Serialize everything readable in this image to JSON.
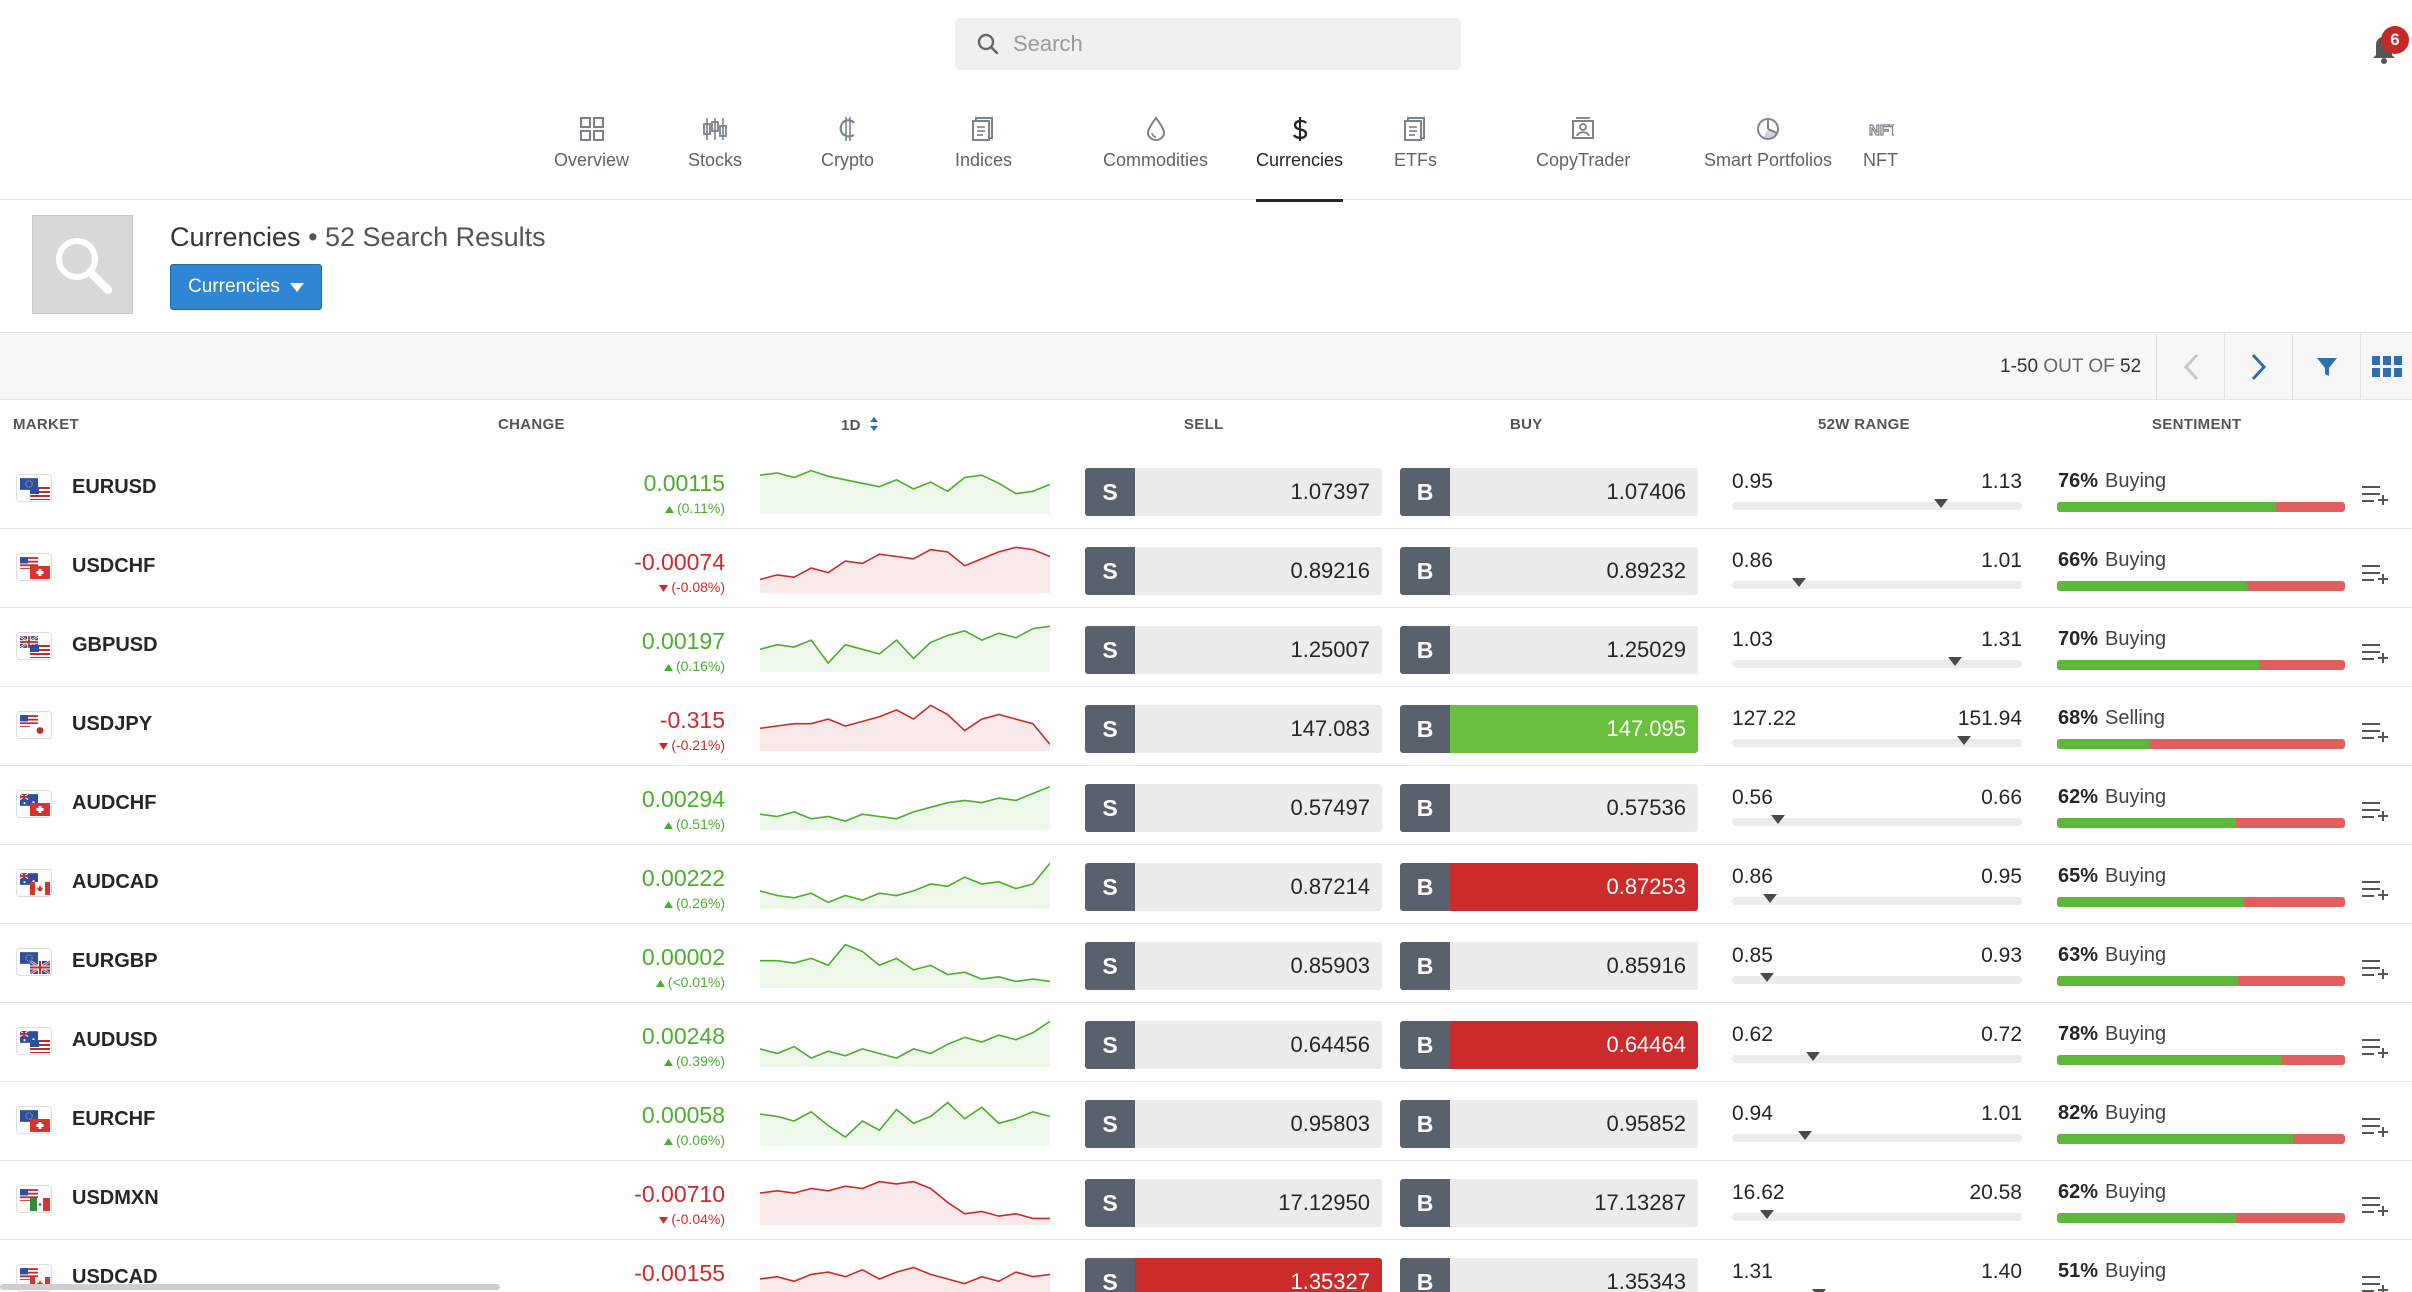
{
  "search": {
    "placeholder": "Search"
  },
  "notifications": {
    "count": "6"
  },
  "nav": {
    "tabs": [
      {
        "label": "Overview",
        "icon": "grid-icon",
        "active": false
      },
      {
        "label": "Stocks",
        "icon": "candlestick-icon",
        "active": false
      },
      {
        "label": "Crypto",
        "icon": "crypto-icon",
        "active": false
      },
      {
        "label": "Indices",
        "icon": "document-icon",
        "active": false
      },
      {
        "label": "Commodities",
        "icon": "drop-icon",
        "active": false
      },
      {
        "label": "Currencies",
        "icon": "dollar-icon",
        "active": true
      },
      {
        "label": "ETFs",
        "icon": "document-icon",
        "active": false
      },
      {
        "label": "CopyTrader",
        "icon": "person-card-icon",
        "active": false
      },
      {
        "label": "Smart Portfolios",
        "icon": "pie-icon",
        "active": false
      },
      {
        "label": "NFT",
        "icon": "nft-icon",
        "active": false
      }
    ]
  },
  "header": {
    "title": "Currencies",
    "result_count": "• 52 Search Results",
    "filter_button": "Currencies"
  },
  "pager": {
    "range": "1-50",
    "out_of": "OUT OF",
    "total": "52"
  },
  "columns": {
    "market": "MARKET",
    "change": "CHANGE",
    "oneday": "1D",
    "sell": "SELL",
    "buy": "BUY",
    "range52": "52W RANGE",
    "sentiment": "SENTIMENT"
  },
  "colors": {
    "up": "#4bae2d",
    "down": "#cc2b2b",
    "accent": "#2f86d4",
    "buy_bar": "#5cb83a",
    "sell_bar": "#e35e5e"
  },
  "rows": [
    {
      "symbol": "EURUSD",
      "change": "0.00115",
      "change_pct": "(0.11%)",
      "dir": "up",
      "sell": "1.07397",
      "buy": "1.07406",
      "sell_hl": "",
      "buy_hl": "",
      "low": "0.95",
      "high": "1.13",
      "range_pos": 0.72,
      "sent_pct": "76%",
      "sent_label": "Buying",
      "sent_value": 76,
      "flags": [
        "eu",
        "us"
      ],
      "spark": [
        8,
        6,
        10,
        4,
        9,
        12,
        15,
        18,
        12,
        20,
        14,
        22,
        10,
        8,
        15,
        24,
        22,
        16
      ]
    },
    {
      "symbol": "USDCHF",
      "change": "-0.00074",
      "change_pct": "(-0.08%)",
      "dir": "down",
      "sell": "0.89216",
      "buy": "0.89232",
      "sell_hl": "",
      "buy_hl": "",
      "low": "0.86",
      "high": "1.01",
      "range_pos": 0.23,
      "sent_pct": "66%",
      "sent_label": "Buying",
      "sent_value": 66,
      "flags": [
        "us",
        "ch"
      ],
      "spark": [
        30,
        26,
        28,
        20,
        24,
        14,
        16,
        8,
        10,
        12,
        4,
        6,
        18,
        12,
        6,
        2,
        4,
        10
      ]
    },
    {
      "symbol": "GBPUSD",
      "change": "0.00197",
      "change_pct": "(0.16%)",
      "dir": "up",
      "sell": "1.25007",
      "buy": "1.25029",
      "sell_hl": "",
      "buy_hl": "",
      "low": "1.03",
      "high": "1.31",
      "range_pos": 0.77,
      "sent_pct": "70%",
      "sent_label": "Buying",
      "sent_value": 70,
      "flags": [
        "gb",
        "us"
      ],
      "spark": [
        22,
        18,
        20,
        14,
        34,
        18,
        22,
        26,
        14,
        30,
        16,
        10,
        6,
        14,
        8,
        12,
        4,
        2
      ]
    },
    {
      "symbol": "USDJPY",
      "change": "-0.315",
      "change_pct": "(-0.21%)",
      "dir": "down",
      "sell": "147.083",
      "buy": "147.095",
      "sell_hl": "",
      "buy_hl": "green",
      "low": "127.22",
      "high": "151.94",
      "range_pos": 0.8,
      "sent_pct": "68%",
      "sent_label": "Selling",
      "sent_value": 32,
      "flags": [
        "us",
        "jp"
      ],
      "spark": [
        22,
        20,
        18,
        18,
        14,
        20,
        16,
        12,
        6,
        14,
        2,
        10,
        24,
        14,
        10,
        14,
        18,
        36
      ]
    },
    {
      "symbol": "AUDCHF",
      "change": "0.00294",
      "change_pct": "(0.51%)",
      "dir": "up",
      "sell": "0.57497",
      "buy": "0.57536",
      "sell_hl": "",
      "buy_hl": "",
      "low": "0.56",
      "high": "0.66",
      "range_pos": 0.16,
      "sent_pct": "62%",
      "sent_label": "Buying",
      "sent_value": 62,
      "flags": [
        "au",
        "ch"
      ],
      "spark": [
        28,
        30,
        26,
        32,
        30,
        34,
        28,
        30,
        32,
        26,
        22,
        18,
        16,
        18,
        14,
        16,
        10,
        4
      ]
    },
    {
      "symbol": "AUDCAD",
      "change": "0.00222",
      "change_pct": "(0.26%)",
      "dir": "up",
      "sell": "0.87214",
      "buy": "0.87253",
      "sell_hl": "",
      "buy_hl": "red",
      "low": "0.86",
      "high": "0.95",
      "range_pos": 0.13,
      "sent_pct": "65%",
      "sent_label": "Buying",
      "sent_value": 65,
      "flags": [
        "au",
        "ca"
      ],
      "spark": [
        26,
        30,
        32,
        28,
        36,
        30,
        34,
        28,
        30,
        26,
        20,
        22,
        14,
        20,
        18,
        24,
        20,
        2
      ]
    },
    {
      "symbol": "EURGBP",
      "change": "0.00002",
      "change_pct": "(<0.01%)",
      "dir": "up",
      "sell": "0.85903",
      "buy": "0.85916",
      "sell_hl": "",
      "buy_hl": "",
      "low": "0.85",
      "high": "0.93",
      "range_pos": 0.12,
      "sent_pct": "63%",
      "sent_label": "Buying",
      "sent_value": 63,
      "flags": [
        "eu",
        "gb"
      ],
      "spark": [
        18,
        18,
        20,
        16,
        22,
        4,
        10,
        22,
        16,
        26,
        22,
        30,
        28,
        34,
        32,
        36,
        34,
        36
      ]
    },
    {
      "symbol": "AUDUSD",
      "change": "0.00248",
      "change_pct": "(0.39%)",
      "dir": "up",
      "sell": "0.64456",
      "buy": "0.64464",
      "sell_hl": "",
      "buy_hl": "red",
      "low": "0.62",
      "high": "0.72",
      "range_pos": 0.28,
      "sent_pct": "78%",
      "sent_label": "Buying",
      "sent_value": 78,
      "flags": [
        "au",
        "us"
      ],
      "spark": [
        26,
        30,
        24,
        34,
        28,
        32,
        26,
        30,
        34,
        26,
        30,
        22,
        16,
        20,
        14,
        18,
        12,
        2
      ]
    },
    {
      "symbol": "EURCHF",
      "change": "0.00058",
      "change_pct": "(0.06%)",
      "dir": "up",
      "sell": "0.95803",
      "buy": "0.95852",
      "sell_hl": "",
      "buy_hl": "",
      "low": "0.94",
      "high": "1.01",
      "range_pos": 0.25,
      "sent_pct": "82%",
      "sent_label": "Buying",
      "sent_value": 82,
      "flags": [
        "eu",
        "ch"
      ],
      "spark": [
        14,
        16,
        20,
        12,
        24,
        34,
        20,
        28,
        10,
        22,
        16,
        4,
        18,
        8,
        22,
        18,
        12,
        16
      ]
    },
    {
      "symbol": "USDMXN",
      "change": "-0.00710",
      "change_pct": "(-0.04%)",
      "dir": "down",
      "sell": "17.12950",
      "buy": "17.13287",
      "sell_hl": "",
      "buy_hl": "",
      "low": "16.62",
      "high": "20.58",
      "range_pos": 0.12,
      "sent_pct": "62%",
      "sent_label": "Buying",
      "sent_value": 62,
      "flags": [
        "us",
        "mx"
      ],
      "spark": [
        14,
        12,
        14,
        10,
        12,
        8,
        10,
        4,
        6,
        4,
        10,
        22,
        32,
        30,
        34,
        32,
        36,
        36
      ]
    },
    {
      "symbol": "USDCAD",
      "change": "-0.00155",
      "change_pct": "",
      "dir": "down",
      "sell": "1.35327",
      "buy": "1.35343",
      "sell_hl": "red",
      "buy_hl": "",
      "low": "1.31",
      "high": "1.40",
      "range_pos": 0.3,
      "sent_pct": "51%",
      "sent_label": "Buying",
      "sent_value": 51,
      "flags": [
        "us",
        "ca"
      ],
      "spark": [
        20,
        18,
        22,
        16,
        14,
        18,
        12,
        20,
        14,
        10,
        16,
        20,
        24,
        18,
        22,
        14,
        18,
        16
      ]
    }
  ]
}
